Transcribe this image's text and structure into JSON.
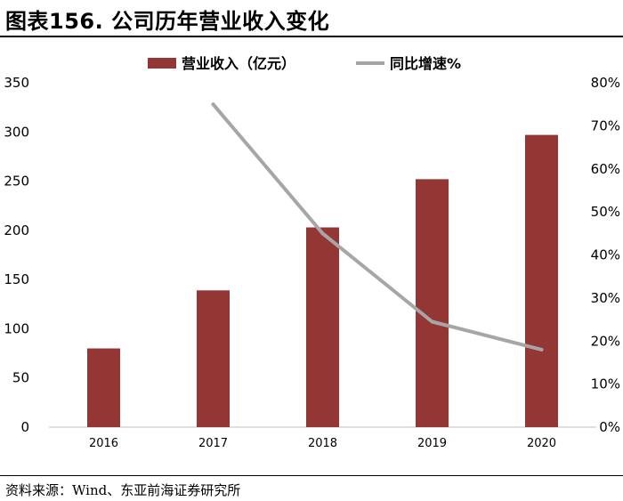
{
  "header": {
    "title": "图表156. 公司历年营业收入变化"
  },
  "footer": {
    "source": "资料来源：Wind、东亚前海证券研究所"
  },
  "colors": {
    "bar": "#943634",
    "line": "#A6A6A6",
    "axis": "#BFBFBF",
    "text": "#000000"
  },
  "chart_data": {
    "type": "bar",
    "title": "",
    "categories": [
      "2016",
      "2017",
      "2018",
      "2019",
      "2020"
    ],
    "series": [
      {
        "name": "营业收入（亿元）",
        "type": "bar",
        "axis": "left",
        "values": [
          80,
          139,
          203,
          252,
          297
        ]
      },
      {
        "name": "同比增速%",
        "type": "line",
        "axis": "right",
        "values": [
          null,
          0.75,
          0.45,
          0.245,
          0.18
        ]
      }
    ],
    "y_left": {
      "min": 0,
      "max": 350,
      "ticks": [
        "0",
        "50",
        "100",
        "150",
        "200",
        "250",
        "300",
        "350"
      ]
    },
    "y_right": {
      "min": 0,
      "max": 0.8,
      "ticks": [
        "0%",
        "10%",
        "20%",
        "30%",
        "40%",
        "50%",
        "60%",
        "70%",
        "80%"
      ]
    },
    "grid": false,
    "legend": "top-center"
  }
}
